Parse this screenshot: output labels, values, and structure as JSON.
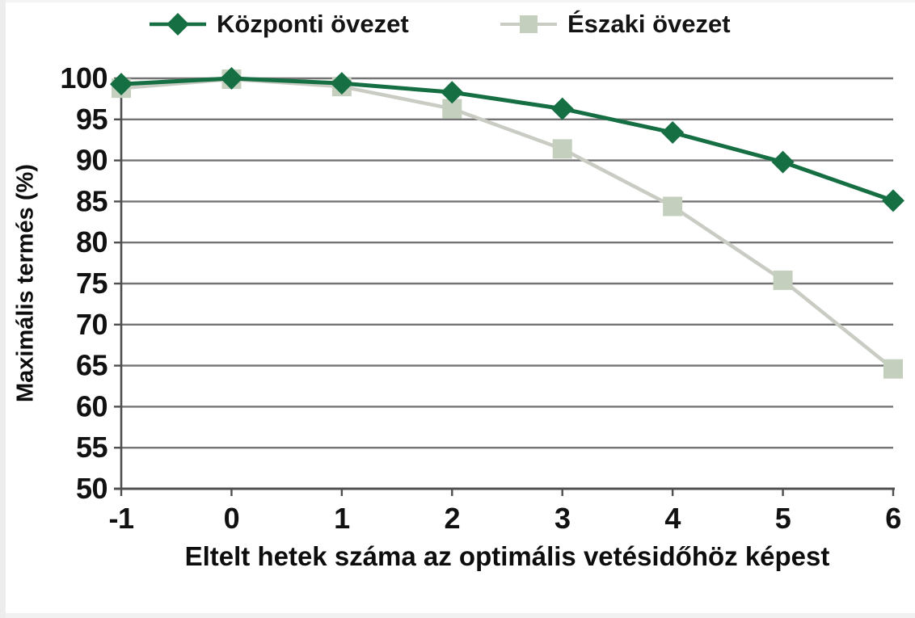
{
  "chart_data": {
    "type": "line",
    "title": "",
    "xlabel": "Eltelt hetek száma az optimális vetésidőhöz képest",
    "ylabel": "Maximális termés (%)",
    "x": [
      -1,
      0,
      1,
      2,
      3,
      4,
      5,
      6
    ],
    "xlim": [
      -1,
      6
    ],
    "ylim": [
      50,
      100
    ],
    "xticks": [
      -1,
      0,
      1,
      2,
      3,
      4,
      5,
      6
    ],
    "yticks": [
      50,
      55,
      60,
      65,
      70,
      75,
      80,
      85,
      90,
      95,
      100
    ],
    "grid": "horizontal",
    "legend_position": "top",
    "series": [
      {
        "name": "Központi övezet",
        "marker": "diamond",
        "color": "#156f43",
        "line_color": "#156f43",
        "values": [
          99.3,
          100.0,
          99.4,
          98.3,
          96.3,
          93.4,
          89.8,
          85.1
        ]
      },
      {
        "name": "Északi övezet",
        "marker": "square",
        "color": "#c4cfbe",
        "line_color": "#c8ccc3",
        "values": [
          98.8,
          99.9,
          99.0,
          96.3,
          91.4,
          84.4,
          75.4,
          64.6
        ]
      }
    ],
    "colors": {
      "grid": "#737373",
      "axis": "#4f4f4f",
      "text": "#111111"
    }
  }
}
